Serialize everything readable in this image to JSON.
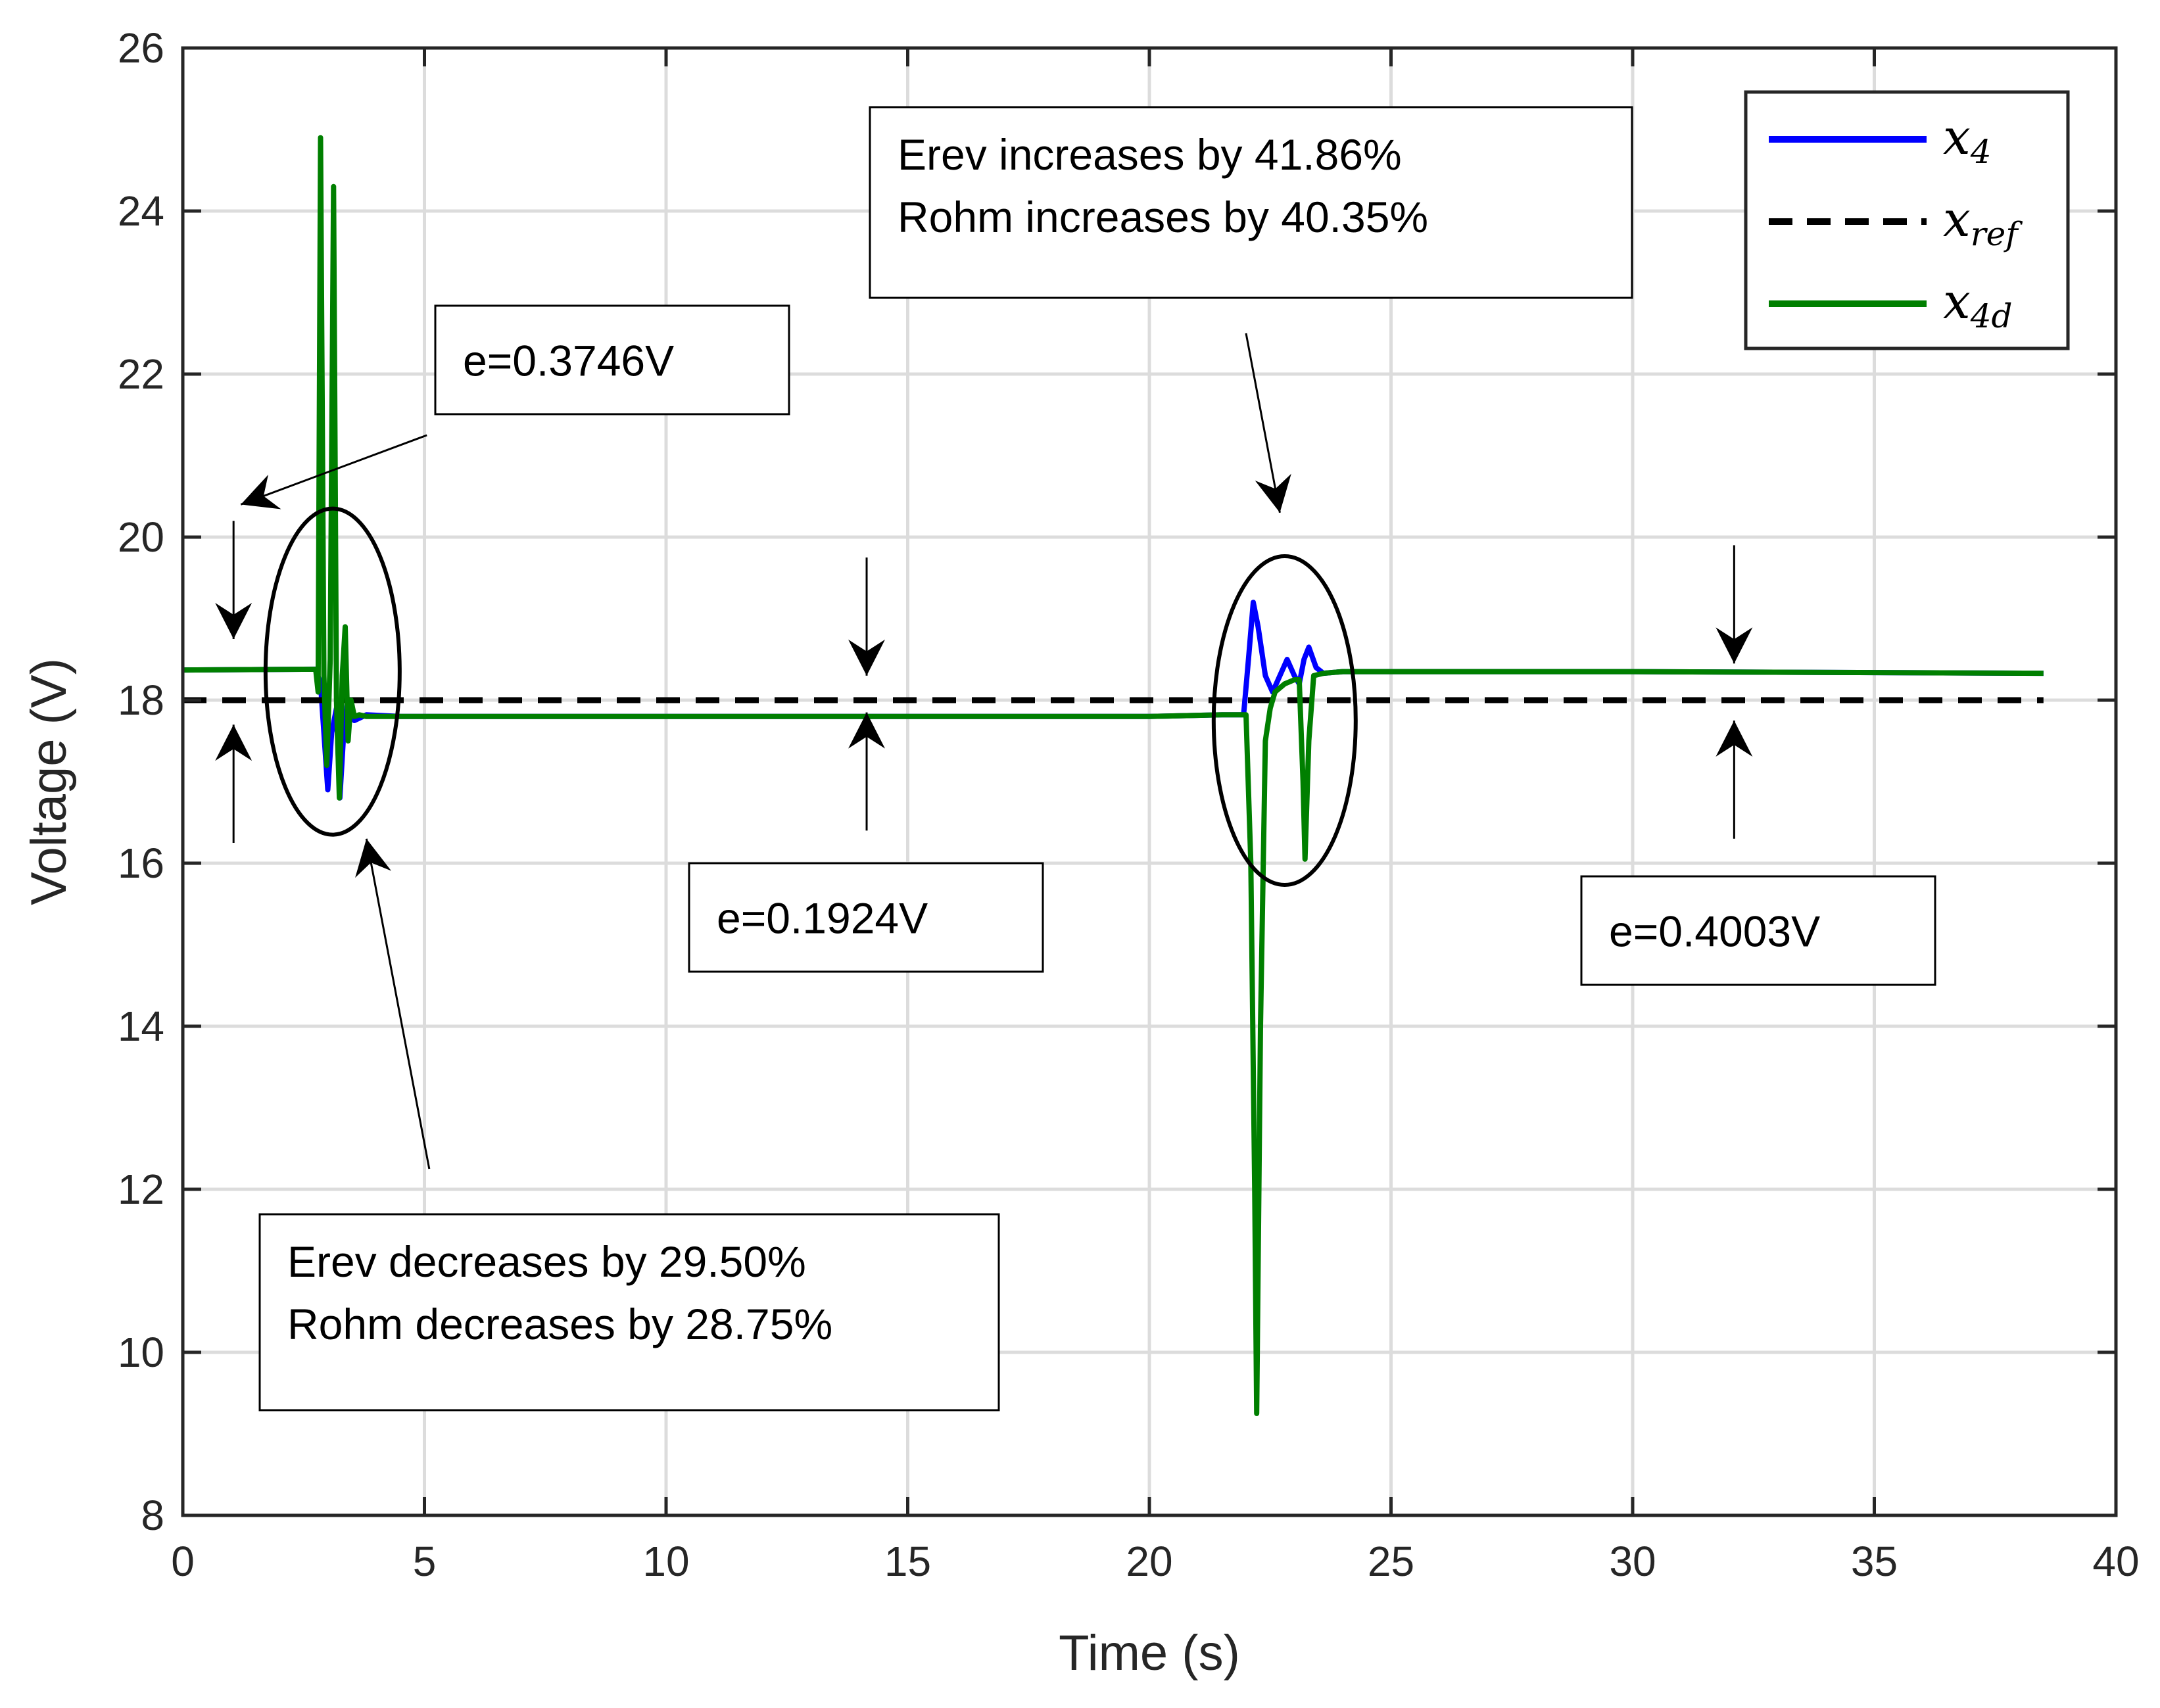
{
  "chart_data": {
    "type": "line",
    "title": "",
    "xlabel": "Time (s)",
    "ylabel": "Voltage (V)",
    "xlim": [
      0,
      40
    ],
    "ylim": [
      8,
      26
    ],
    "grid": true,
    "x_ticks": [
      0,
      5,
      10,
      15,
      20,
      25,
      30,
      35,
      40
    ],
    "y_ticks": [
      8,
      10,
      12,
      14,
      16,
      18,
      20,
      22,
      24,
      26
    ],
    "legend": {
      "position": "top-right",
      "entries": [
        {
          "name": "x",
          "sub": "4",
          "color": "#0000ff",
          "style": "solid"
        },
        {
          "name": "x",
          "sub": "ref",
          "color": "#000000",
          "style": "dashed"
        },
        {
          "name": "x",
          "sub": "4d",
          "color": "#007f00",
          "style": "solid"
        }
      ]
    },
    "series": [
      {
        "name": "x4",
        "color": "#0000ff",
        "x": [
          0,
          2.75,
          2.85,
          2.92,
          3.0,
          3.08,
          3.18,
          3.25,
          3.32,
          3.4,
          3.55,
          3.8,
          4.5,
          10,
          15,
          20,
          21.5,
          21.95,
          22.05,
          22.15,
          22.25,
          22.4,
          22.55,
          22.7,
          22.85,
          23.0,
          23.1,
          23.2,
          23.3,
          23.45,
          23.6,
          24,
          30,
          38.5
        ],
        "y": [
          18.37,
          18.38,
          18.2,
          17.6,
          16.9,
          17.6,
          17.9,
          16.8,
          17.5,
          17.95,
          17.75,
          17.82,
          17.8,
          17.8,
          17.8,
          17.8,
          17.82,
          17.82,
          18.5,
          19.2,
          18.9,
          18.3,
          18.1,
          18.3,
          18.5,
          18.3,
          18.2,
          18.5,
          18.65,
          18.4,
          18.33,
          18.35,
          18.35,
          18.33
        ]
      },
      {
        "name": "xref",
        "color": "#000000",
        "x": [
          0,
          38.5
        ],
        "y": [
          18,
          18
        ]
      },
      {
        "name": "x4d",
        "color": "#007f00",
        "x": [
          0,
          2.75,
          2.8,
          2.85,
          2.92,
          2.98,
          3.05,
          3.12,
          3.18,
          3.24,
          3.3,
          3.36,
          3.42,
          3.48,
          3.55,
          3.65,
          3.8,
          4.5,
          10,
          15,
          20,
          21.5,
          22.0,
          22.1,
          22.18,
          22.22,
          22.3,
          22.4,
          22.5,
          22.6,
          22.8,
          23.0,
          23.1,
          23.18,
          23.22,
          23.3,
          23.4,
          23.6,
          24,
          30,
          38.5
        ],
        "y": [
          18.37,
          18.38,
          18.1,
          24.9,
          18.3,
          17.2,
          18.5,
          24.3,
          18.0,
          16.8,
          18.3,
          18.9,
          17.5,
          18.0,
          17.8,
          17.82,
          17.8,
          17.8,
          17.8,
          17.8,
          17.8,
          17.82,
          17.82,
          16.0,
          12.0,
          9.25,
          14.0,
          17.5,
          17.9,
          18.1,
          18.2,
          18.25,
          18.25,
          17.0,
          16.05,
          17.5,
          18.3,
          18.33,
          18.35,
          18.35,
          18.33
        ]
      }
    ],
    "annotations": [
      {
        "text": [
          "e=0.3746V"
        ],
        "at": [
          5.2,
          21.6
        ]
      },
      {
        "text": [
          "e=0.1924V"
        ],
        "at": [
          11.0,
          15.4
        ]
      },
      {
        "text": [
          "e=0.4003V"
        ],
        "at": [
          29.5,
          15.25
        ]
      },
      {
        "text": [
          "Erev increases by 41.86%",
          "Rohm increases by 40.35%"
        ],
        "at": [
          14.5,
          23.6
        ]
      },
      {
        "text": [
          "Erev decreases by 29.50%",
          "Rohm decreases by 28.75%"
        ],
        "at": [
          2.2,
          10.6
        ]
      }
    ]
  }
}
